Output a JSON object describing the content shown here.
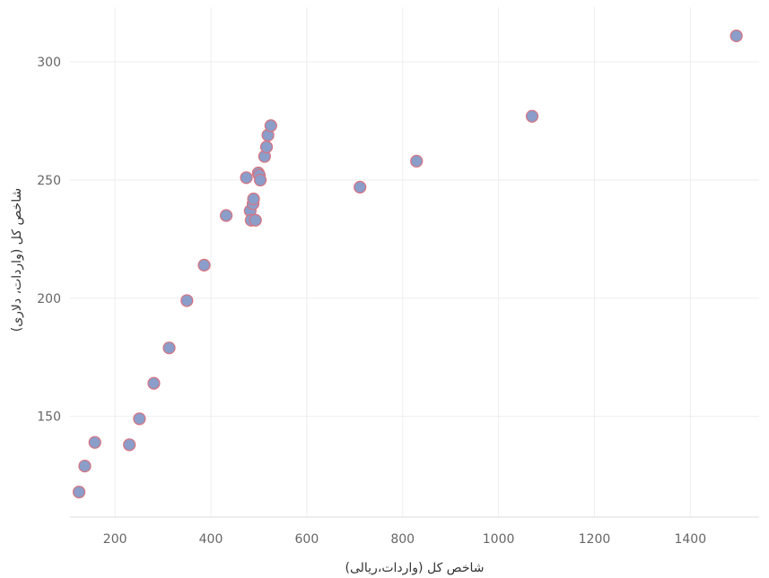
{
  "chart_data": {
    "type": "scatter",
    "xlabel": "شاخص کل (واردات،ریالی)",
    "ylabel": "شاخص کل (واردات، دلاری)",
    "xlim": [
      100,
      1540
    ],
    "ylim": [
      110,
      322
    ],
    "xticks": [
      200,
      400,
      600,
      800,
      1000,
      1200,
      1400
    ],
    "yticks": [
      150,
      200,
      250,
      300
    ],
    "grid": true,
    "marker_fill": "#8b9dc9",
    "marker_stroke": "#d9737f",
    "points": [
      {
        "x": 125,
        "y": 118
      },
      {
        "x": 137,
        "y": 129
      },
      {
        "x": 158,
        "y": 139
      },
      {
        "x": 230,
        "y": 138
      },
      {
        "x": 251,
        "y": 149
      },
      {
        "x": 281,
        "y": 164
      },
      {
        "x": 313,
        "y": 179
      },
      {
        "x": 350,
        "y": 199
      },
      {
        "x": 386,
        "y": 214
      },
      {
        "x": 432,
        "y": 235
      },
      {
        "x": 474,
        "y": 251
      },
      {
        "x": 482,
        "y": 237
      },
      {
        "x": 484,
        "y": 233
      },
      {
        "x": 488,
        "y": 240
      },
      {
        "x": 489,
        "y": 242
      },
      {
        "x": 493,
        "y": 233
      },
      {
        "x": 499,
        "y": 253
      },
      {
        "x": 501,
        "y": 252
      },
      {
        "x": 503,
        "y": 250
      },
      {
        "x": 512,
        "y": 260
      },
      {
        "x": 516,
        "y": 264
      },
      {
        "x": 519,
        "y": 269
      },
      {
        "x": 525,
        "y": 273
      },
      {
        "x": 711,
        "y": 247
      },
      {
        "x": 829,
        "y": 258
      },
      {
        "x": 1070,
        "y": 277
      },
      {
        "x": 1496,
        "y": 311
      }
    ]
  }
}
